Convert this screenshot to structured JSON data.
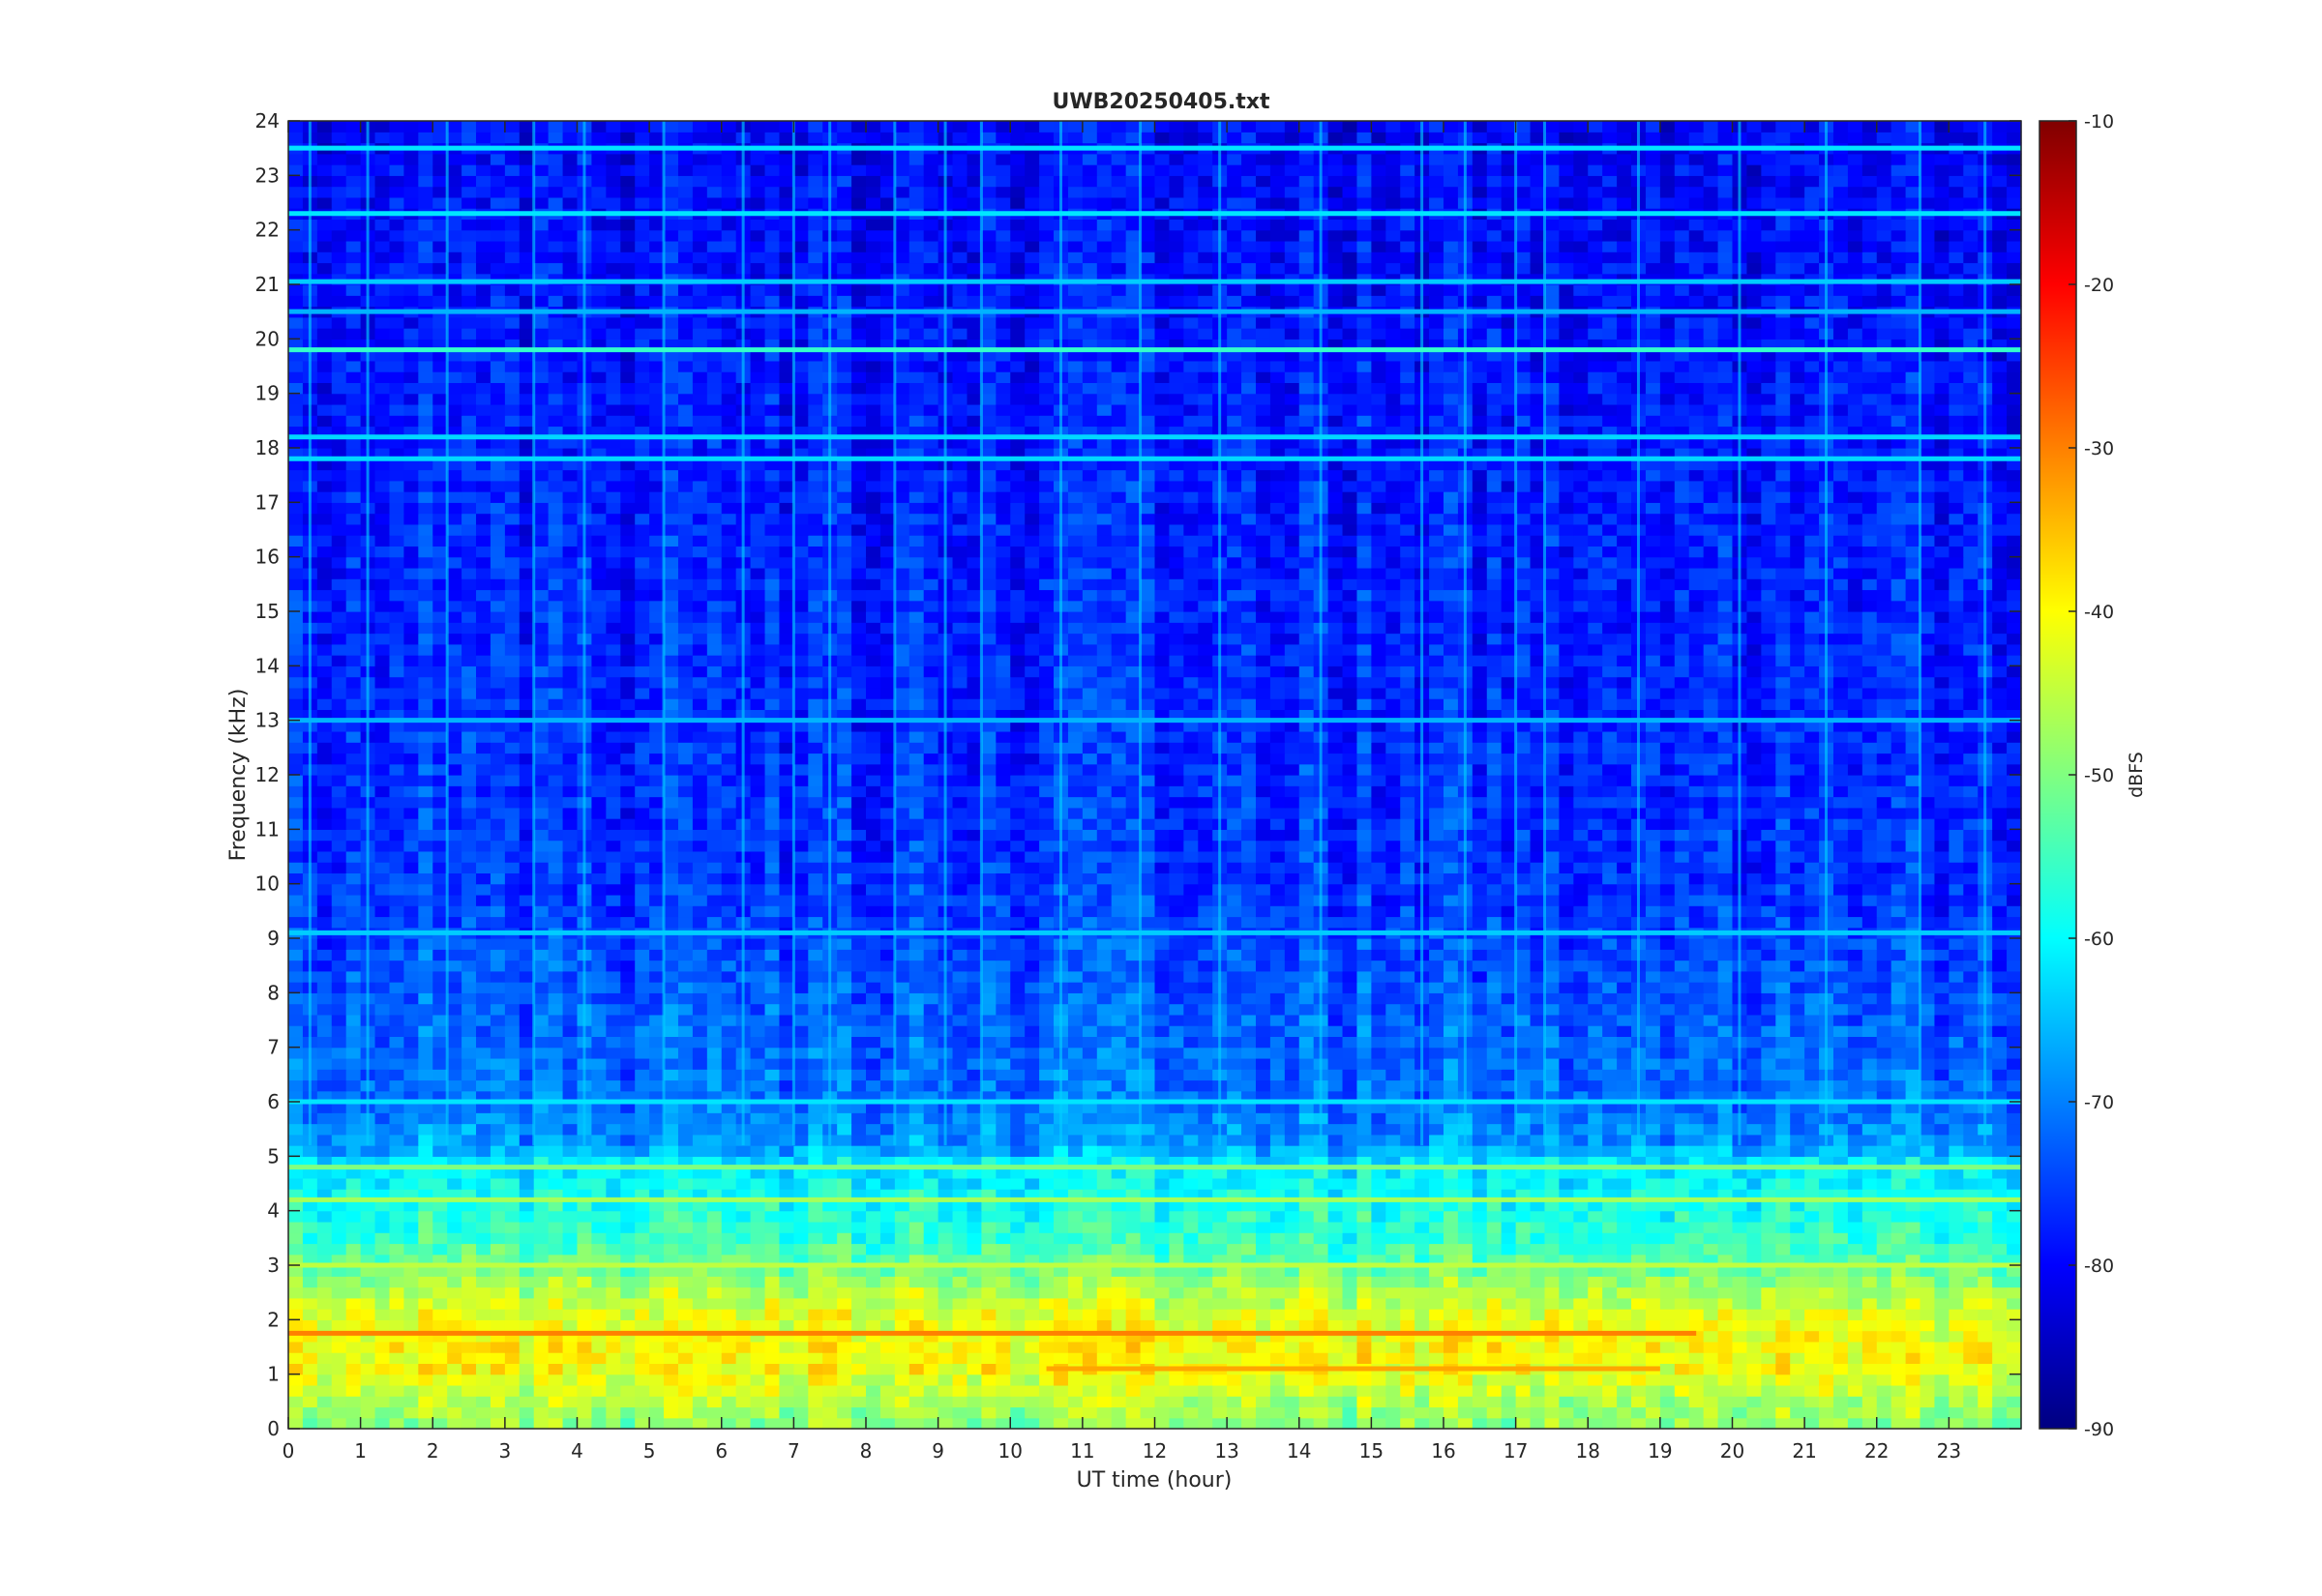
{
  "chart_data": {
    "type": "heatmap",
    "title": "UWB20250405.txt",
    "xlabel": "UT time (hour)",
    "ylabel": "Frequency (kHz)",
    "xlim": [
      0,
      24
    ],
    "ylim": [
      0,
      24
    ],
    "x_ticks": [
      "0",
      "1",
      "2",
      "3",
      "4",
      "5",
      "6",
      "7",
      "8",
      "9",
      "10",
      "11",
      "12",
      "13",
      "14",
      "15",
      "16",
      "17",
      "18",
      "19",
      "20",
      "21",
      "22",
      "23"
    ],
    "y_ticks": [
      "0",
      "1",
      "2",
      "3",
      "4",
      "5",
      "6",
      "7",
      "8",
      "9",
      "10",
      "11",
      "12",
      "13",
      "14",
      "15",
      "16",
      "17",
      "18",
      "19",
      "20",
      "21",
      "22",
      "23",
      "24"
    ],
    "colorbar": {
      "label": "dBFS",
      "range": [
        -90,
        -10
      ],
      "ticks": [
        "-10",
        "-20",
        "-30",
        "-40",
        "-50",
        "-60",
        "-70",
        "-80",
        "-90"
      ],
      "colormap": "jet"
    },
    "frequency_profile_dbfs": [
      {
        "khz": 0.0,
        "db": -50
      },
      {
        "khz": 0.5,
        "db": -46
      },
      {
        "khz": 1.0,
        "db": -41
      },
      {
        "khz": 1.5,
        "db": -40
      },
      {
        "khz": 2.0,
        "db": -42
      },
      {
        "khz": 2.5,
        "db": -46
      },
      {
        "khz": 3.0,
        "db": -52
      },
      {
        "khz": 3.5,
        "db": -56
      },
      {
        "khz": 4.0,
        "db": -58
      },
      {
        "khz": 4.5,
        "db": -60
      },
      {
        "khz": 4.9,
        "db": -62
      },
      {
        "khz": 5.2,
        "db": -68
      },
      {
        "khz": 6.0,
        "db": -71
      },
      {
        "khz": 8.0,
        "db": -73
      },
      {
        "khz": 10.0,
        "db": -76
      },
      {
        "khz": 14.0,
        "db": -77
      },
      {
        "khz": 18.0,
        "db": -78
      },
      {
        "khz": 21.0,
        "db": -79
      },
      {
        "khz": 24.0,
        "db": -80
      }
    ],
    "narrowband_lines": [
      {
        "khz": 1.75,
        "db": -30,
        "from_hour": 0,
        "to_hour": 19.5
      },
      {
        "khz": 1.1,
        "db": -33,
        "from_hour": 10.5,
        "to_hour": 19
      },
      {
        "khz": 3.0,
        "db": -45,
        "from_hour": 0,
        "to_hour": 24
      },
      {
        "khz": 4.2,
        "db": -47,
        "from_hour": 0,
        "to_hour": 24
      },
      {
        "khz": 4.8,
        "db": -50,
        "from_hour": 0,
        "to_hour": 24
      },
      {
        "khz": 6.0,
        "db": -62,
        "from_hour": 0,
        "to_hour": 24
      },
      {
        "khz": 9.1,
        "db": -64,
        "from_hour": 0,
        "to_hour": 24
      },
      {
        "khz": 13.0,
        "db": -66,
        "from_hour": 0,
        "to_hour": 24
      },
      {
        "khz": 17.8,
        "db": -63,
        "from_hour": 0,
        "to_hour": 24
      },
      {
        "khz": 18.2,
        "db": -63,
        "from_hour": 0,
        "to_hour": 24
      },
      {
        "khz": 19.8,
        "db": -56,
        "from_hour": 0,
        "to_hour": 24
      },
      {
        "khz": 20.5,
        "db": -66,
        "from_hour": 0,
        "to_hour": 24
      },
      {
        "khz": 21.05,
        "db": -64,
        "from_hour": 0,
        "to_hour": 24
      },
      {
        "khz": 22.3,
        "db": -62,
        "from_hour": 0,
        "to_hour": 24
      },
      {
        "khz": 23.5,
        "db": -62,
        "from_hour": 0,
        "to_hour": 24
      }
    ],
    "broadband_impulses_hour": [
      0.3,
      1.1,
      2.2,
      3.4,
      4.1,
      5.2,
      6.3,
      7.0,
      7.5,
      8.4,
      9.1,
      9.6,
      10.7,
      11.8,
      12.9,
      14.3,
      15.7,
      16.3,
      17.0,
      17.4,
      18.7,
      20.1,
      21.3,
      22.6,
      23.5
    ]
  }
}
